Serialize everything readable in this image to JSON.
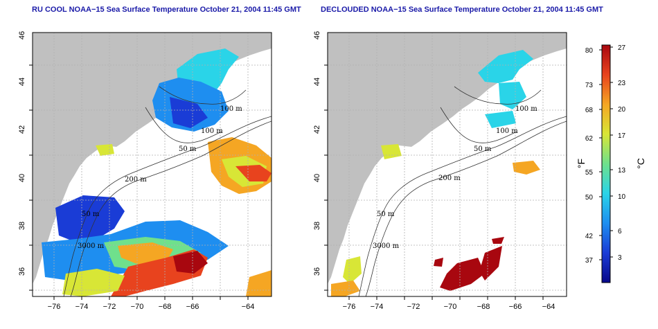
{
  "panels": [
    {
      "title": "RU COOL NOAA−15 Sea Surface Temperature October 21, 2004 11:45 GMT",
      "contour_labels": [
        "100 m",
        "100 m",
        "50 m",
        "200 m",
        "50 m",
        "3000 m"
      ]
    },
    {
      "title": "DECLOUDED NOAA−15 Sea Surface Temperature October 21, 2004 11:45 GMT",
      "contour_labels": [
        "100 m",
        "100 m",
        "50 m",
        "200 m",
        "50 m",
        "3000 m"
      ]
    }
  ],
  "axes": {
    "lon_ticks": [
      "−76",
      "−74",
      "−72",
      "−70",
      "−68",
      "−66",
      "−64"
    ],
    "lat_ticks": [
      "36",
      "38",
      "40",
      "42",
      "44",
      "46"
    ]
  },
  "colorbar": {
    "fahrenheit_label": "°F",
    "celsius_label": "°C",
    "fahrenheit_ticks": [
      "80",
      "73",
      "68",
      "62",
      "55",
      "50",
      "42",
      "37"
    ],
    "celsius_ticks": [
      "27",
      "23",
      "20",
      "17",
      "13",
      "10",
      "6",
      "3"
    ],
    "colors": [
      "#08088a",
      "#1a3cd6",
      "#1e8ef0",
      "#2ad4e8",
      "#6fe08c",
      "#d8e636",
      "#f5a623",
      "#e8431e",
      "#a8070f"
    ]
  },
  "colors": {
    "land": "#c0c0c0",
    "ocean": "#ffffff",
    "grid": "#b0b0b0",
    "title": "#1a1aa8"
  }
}
